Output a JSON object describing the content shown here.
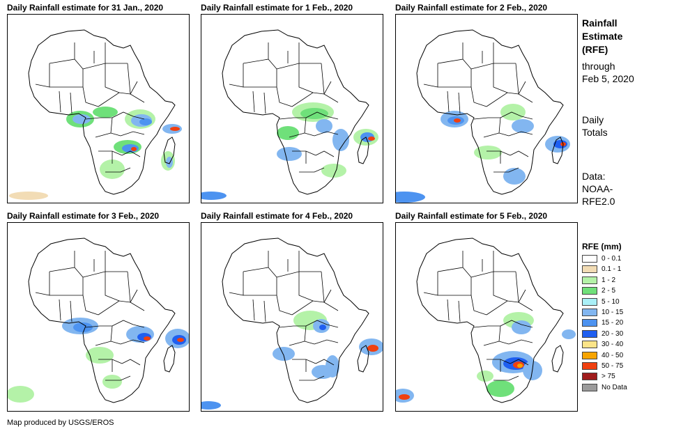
{
  "panels": [
    {
      "title": "Daily Rainfall estimate for 31 Jan., 2020"
    },
    {
      "title": "Daily Rainfall estimate for 1 Feb., 2020"
    },
    {
      "title": "Daily Rainfall estimate for 2 Feb., 2020"
    },
    {
      "title": "Daily Rainfall estimate for 3 Feb., 2020"
    },
    {
      "title": "Daily Rainfall estimate for 4 Feb., 2020"
    },
    {
      "title": "Daily Rainfall estimate for 5 Feb., 2020"
    }
  ],
  "side": {
    "title_lines": [
      "Rainfall",
      "Estimate",
      "(RFE)"
    ],
    "through_lines": [
      "through",
      "Feb 5, 2020"
    ],
    "daily_lines": [
      "Daily",
      "Totals"
    ],
    "data_lines": [
      "Data:",
      "NOAA-",
      "RFE2.0"
    ]
  },
  "legend": {
    "title": "RFE (mm)",
    "items": [
      {
        "label": "0 - 0.1",
        "color": "#ffffff"
      },
      {
        "label": "0.1 - 1",
        "color": "#f2dcb5"
      },
      {
        "label": "1 - 2",
        "color": "#b4f2a8"
      },
      {
        "label": "2 - 5",
        "color": "#6fe07a"
      },
      {
        "label": "5 - 10",
        "color": "#aaf0f7"
      },
      {
        "label": "10 - 15",
        "color": "#82b6f0"
      },
      {
        "label": "15 - 20",
        "color": "#4d93f0"
      },
      {
        "label": "20 - 30",
        "color": "#1f5ff0"
      },
      {
        "label": "30 - 40",
        "color": "#fbe488"
      },
      {
        "label": "40 - 50",
        "color": "#f7a400"
      },
      {
        "label": "50 - 75",
        "color": "#f04010"
      },
      {
        "label": "> 75",
        "color": "#a01c1c"
      },
      {
        "label": "No Data",
        "color": "#9b9b9b"
      }
    ]
  },
  "credit": "Map produced by USGS/EROS"
}
